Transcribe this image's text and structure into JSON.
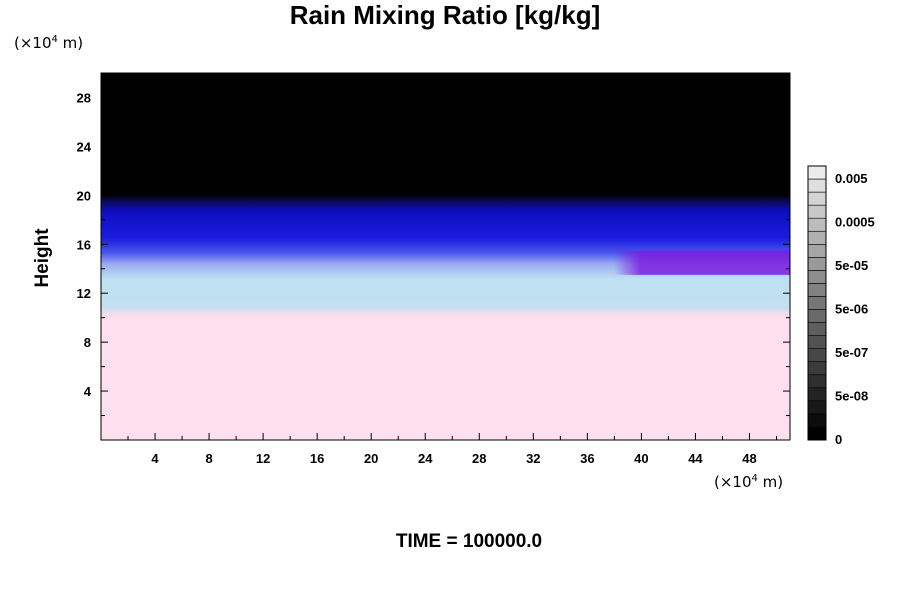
{
  "chart_data": {
    "type": "heatmap",
    "title": "Rain Mixing Ratio [kg/kg]",
    "ylabel": "Height",
    "xlabel": "",
    "x_unit_label": {
      "prefix": "(×10",
      "exp": "4",
      "suffix": " m)"
    },
    "y_unit_label": {
      "prefix": "(×10",
      "exp": "4",
      "suffix": " m)"
    },
    "footer": "TIME = 100000.0",
    "xlim": [
      0,
      51
    ],
    "ylim": [
      0,
      30
    ],
    "x_ticks": [
      4,
      8,
      12,
      16,
      20,
      24,
      28,
      32,
      36,
      40,
      44,
      48
    ],
    "y_ticks": [
      4,
      8,
      12,
      16,
      20,
      24,
      28
    ],
    "colorbar": {
      "labels": [
        "0",
        "5e-08",
        "5e-07",
        "5e-06",
        "5e-05",
        "0.0005",
        "0.005"
      ],
      "levels": 21
    },
    "bands": [
      {
        "region": "top",
        "y_from": 19.5,
        "y_to": 30,
        "color": "#000000"
      },
      {
        "region": "upper-deep-blue",
        "y_from": 15.5,
        "y_to": 19.5,
        "color": "#1a1adb"
      },
      {
        "region": "mid-blue",
        "y_from": 13.8,
        "y_to": 15.5,
        "color": "#8a9af0"
      },
      {
        "region": "light-blue",
        "y_from": 10.3,
        "y_to": 13.8,
        "color": "#bfe0f2"
      },
      {
        "region": "bottom",
        "y_from": 0,
        "y_to": 10.3,
        "color": "#fde0ee"
      }
    ],
    "purple_patch": {
      "x_from": 38,
      "x_to": 51,
      "y_from": 13.5,
      "y_to": 15.5,
      "color": "#7a1ee0"
    }
  }
}
